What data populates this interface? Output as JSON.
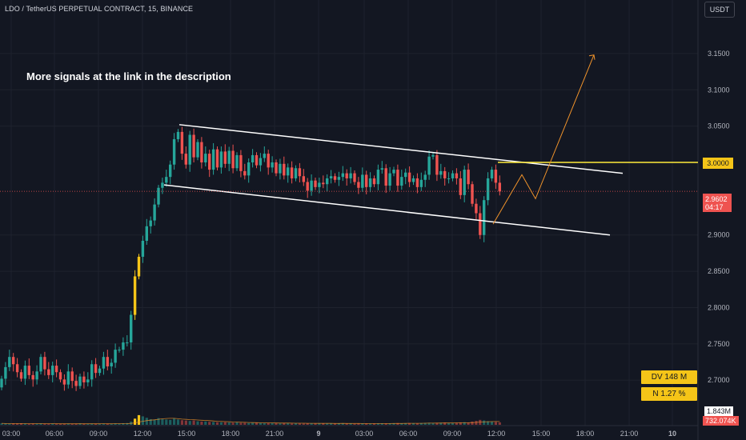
{
  "header": {
    "symbol_label": "LDO / TetherUS PERPETUAL CONTRACT, 15, BINANCE",
    "currency_button": "USDT"
  },
  "annotation": {
    "text": "More signals at the link in the description"
  },
  "markers": {
    "target_price": "3.0000",
    "current_price": "2.9602",
    "countdown": "04:17",
    "volume_top": "1.843M",
    "volume_last": "732.074K"
  },
  "stats": {
    "dv": "DV 148 M",
    "n": "N 1.27 %"
  },
  "colors": {
    "background": "#131722",
    "up": "#26a69a",
    "down": "#ef5350",
    "highlight": "#f5c518",
    "projection": "#f0932b",
    "channel": "#ffffff"
  },
  "chart_data": {
    "type": "candlestick",
    "interval": "15",
    "y_ticks": [
      "3.1500",
      "3.1000",
      "3.0500",
      "2.9000",
      "2.8500",
      "2.8000",
      "2.7500",
      "2.7000"
    ],
    "x_ticks": [
      "03:00",
      "06:00",
      "09:00",
      "12:00",
      "15:00",
      "18:00",
      "21:00",
      "9",
      "03:00",
      "06:00",
      "09:00",
      "12:00",
      "15:00",
      "18:00",
      "21:00",
      "10"
    ],
    "ylim": [
      2.665,
      3.19
    ],
    "horizontal_line": 3.0,
    "channel_upper": [
      [
        3.052,
        2.985
      ]
    ],
    "channel_lower": [
      [
        2.969,
        2.9
      ]
    ],
    "projection_path": [
      2.915,
      2.983,
      2.95,
      3.148
    ],
    "candles": [
      [
        2.69,
        2.702
      ],
      [
        2.702,
        2.718
      ],
      [
        2.718,
        2.732
      ],
      [
        2.732,
        2.722
      ],
      [
        2.722,
        2.711
      ],
      [
        2.711,
        2.702
      ],
      [
        2.702,
        2.72
      ],
      [
        2.72,
        2.707
      ],
      [
        2.707,
        2.701
      ],
      [
        2.701,
        2.712
      ],
      [
        2.712,
        2.732
      ],
      [
        2.732,
        2.715
      ],
      [
        2.715,
        2.707
      ],
      [
        2.707,
        2.72
      ],
      [
        2.72,
        2.711
      ],
      [
        2.711,
        2.701
      ],
      [
        2.701,
        2.694
      ],
      [
        2.694,
        2.712
      ],
      [
        2.712,
        2.699
      ],
      [
        2.699,
        2.692
      ],
      [
        2.692,
        2.705
      ],
      [
        2.705,
        2.697
      ],
      [
        2.697,
        2.701
      ],
      [
        2.701,
        2.722
      ],
      [
        2.722,
        2.71
      ],
      [
        2.71,
        2.716
      ],
      [
        2.716,
        2.732
      ],
      [
        2.732,
        2.719
      ],
      [
        2.719,
        2.724
      ],
      [
        2.724,
        2.742
      ],
      [
        2.742,
        2.742
      ],
      [
        2.742,
        2.752
      ],
      [
        2.752,
        2.752
      ],
      [
        2.752,
        2.79
      ],
      [
        2.79,
        2.843
      ],
      [
        2.843,
        2.87
      ],
      [
        2.87,
        2.892
      ],
      [
        2.892,
        2.912
      ],
      [
        2.912,
        2.92
      ],
      [
        2.92,
        2.942
      ],
      [
        2.942,
        2.965
      ],
      [
        2.965,
        2.972
      ],
      [
        2.972,
        2.98
      ],
      [
        2.98,
        2.997
      ],
      [
        2.997,
        3.032
      ],
      [
        3.032,
        3.042
      ],
      [
        3.042,
        3.012
      ],
      [
        3.012,
        2.997
      ],
      [
        2.997,
        3.038
      ],
      [
        3.038,
        3.007
      ],
      [
        3.007,
        3.028
      ],
      [
        3.028,
        3.0
      ],
      [
        3.0,
        3.012
      ],
      [
        3.012,
        2.99
      ],
      [
        2.99,
        3.018
      ],
      [
        3.018,
        2.993
      ],
      [
        2.993,
        3.015
      ],
      [
        3.015,
        2.998
      ],
      [
        2.998,
        3.016
      ],
      [
        3.016,
        2.992
      ],
      [
        2.992,
        3.01
      ],
      [
        3.01,
        2.988
      ],
      [
        2.988,
        2.982
      ],
      [
        2.982,
        3.0
      ],
      [
        3.0,
        3.01
      ],
      [
        3.01,
        2.996
      ],
      [
        2.996,
        3.006
      ],
      [
        3.006,
        3.012
      ],
      [
        3.012,
        2.993
      ],
      [
        2.993,
        3.0
      ],
      [
        3.0,
        2.985
      ],
      [
        2.985,
        2.998
      ],
      [
        2.998,
        2.982
      ],
      [
        2.982,
        2.993
      ],
      [
        2.993,
        2.978
      ],
      [
        2.978,
        2.992
      ],
      [
        2.992,
        2.981
      ],
      [
        2.981,
        2.973
      ],
      [
        2.973,
        2.961
      ],
      [
        2.961,
        2.975
      ],
      [
        2.975,
        2.966
      ],
      [
        2.966,
        2.972
      ],
      [
        2.972,
        2.97
      ],
      [
        2.97,
        2.978
      ],
      [
        2.978,
        2.981
      ],
      [
        2.981,
        2.976
      ],
      [
        2.976,
        2.98
      ],
      [
        2.98,
        2.985
      ],
      [
        2.985,
        2.978
      ],
      [
        2.978,
        2.985
      ],
      [
        2.985,
        2.973
      ],
      [
        2.973,
        2.965
      ],
      [
        2.965,
        2.983
      ],
      [
        2.983,
        2.966
      ],
      [
        2.966,
        2.978
      ],
      [
        2.978,
        2.97
      ],
      [
        2.97,
        2.99
      ],
      [
        2.99,
        2.992
      ],
      [
        2.992,
        2.968
      ],
      [
        2.968,
        2.985
      ],
      [
        2.985,
        2.99
      ],
      [
        2.99,
        2.968
      ],
      [
        2.968,
        2.98
      ],
      [
        2.98,
        2.986
      ],
      [
        2.986,
        2.973
      ],
      [
        2.973,
        2.978
      ],
      [
        2.978,
        2.966
      ],
      [
        2.966,
        2.976
      ],
      [
        2.976,
        2.983
      ],
      [
        2.983,
        3.008
      ],
      [
        3.008,
        3.01
      ],
      [
        3.01,
        2.983
      ],
      [
        2.983,
        2.988
      ],
      [
        2.988,
        2.978
      ],
      [
        2.978,
        2.978
      ],
      [
        2.978,
        2.985
      ],
      [
        2.985,
        2.978
      ],
      [
        2.978,
        2.955
      ],
      [
        2.955,
        2.99
      ],
      [
        2.99,
        2.97
      ],
      [
        2.97,
        2.943
      ],
      [
        2.943,
        2.93
      ],
      [
        2.93,
        2.9
      ],
      [
        2.9,
        2.948
      ],
      [
        2.948,
        2.978
      ],
      [
        2.978,
        2.99
      ],
      [
        2.99,
        2.972
      ],
      [
        2.972,
        2.96
      ]
    ],
    "volume_ratio": [
      0.08,
      0.07,
      0.06,
      0.08,
      0.07,
      0.09,
      0.06,
      0.05,
      0.07,
      0.06,
      0.08,
      0.06,
      0.05,
      0.07,
      0.06,
      0.05,
      0.06,
      0.07,
      0.05,
      0.06,
      0.08,
      0.06,
      0.05,
      0.07,
      0.06,
      0.05,
      0.07,
      0.06,
      0.05,
      0.08,
      0.07,
      0.09,
      0.1,
      0.18,
      0.35,
      0.55,
      0.48,
      0.4,
      0.32,
      0.3,
      0.38,
      0.33,
      0.3,
      0.28,
      0.36,
      0.3,
      0.26,
      0.24,
      0.22,
      0.25,
      0.2,
      0.18,
      0.19,
      0.17,
      0.16,
      0.15,
      0.14,
      0.15,
      0.13,
      0.12,
      0.14,
      0.11,
      0.12,
      0.1,
      0.11,
      0.12,
      0.1,
      0.09,
      0.1,
      0.11,
      0.09,
      0.08,
      0.1,
      0.09,
      0.08,
      0.09,
      0.08,
      0.07,
      0.09,
      0.08,
      0.07,
      0.08,
      0.09,
      0.07,
      0.08,
      0.07,
      0.09,
      0.08,
      0.07,
      0.08,
      0.06,
      0.07,
      0.08,
      0.07,
      0.06,
      0.07,
      0.08,
      0.09,
      0.07,
      0.08,
      0.09,
      0.1,
      0.08,
      0.09,
      0.1,
      0.09,
      0.08,
      0.1,
      0.11,
      0.12,
      0.1,
      0.11,
      0.12,
      0.13,
      0.1,
      0.09,
      0.12,
      0.14,
      0.15,
      0.12,
      0.18,
      0.22,
      0.28,
      0.25,
      0.2,
      0.18,
      0.16,
      0.14
    ],
    "highlight_candle_indices": [
      34,
      35
    ]
  }
}
